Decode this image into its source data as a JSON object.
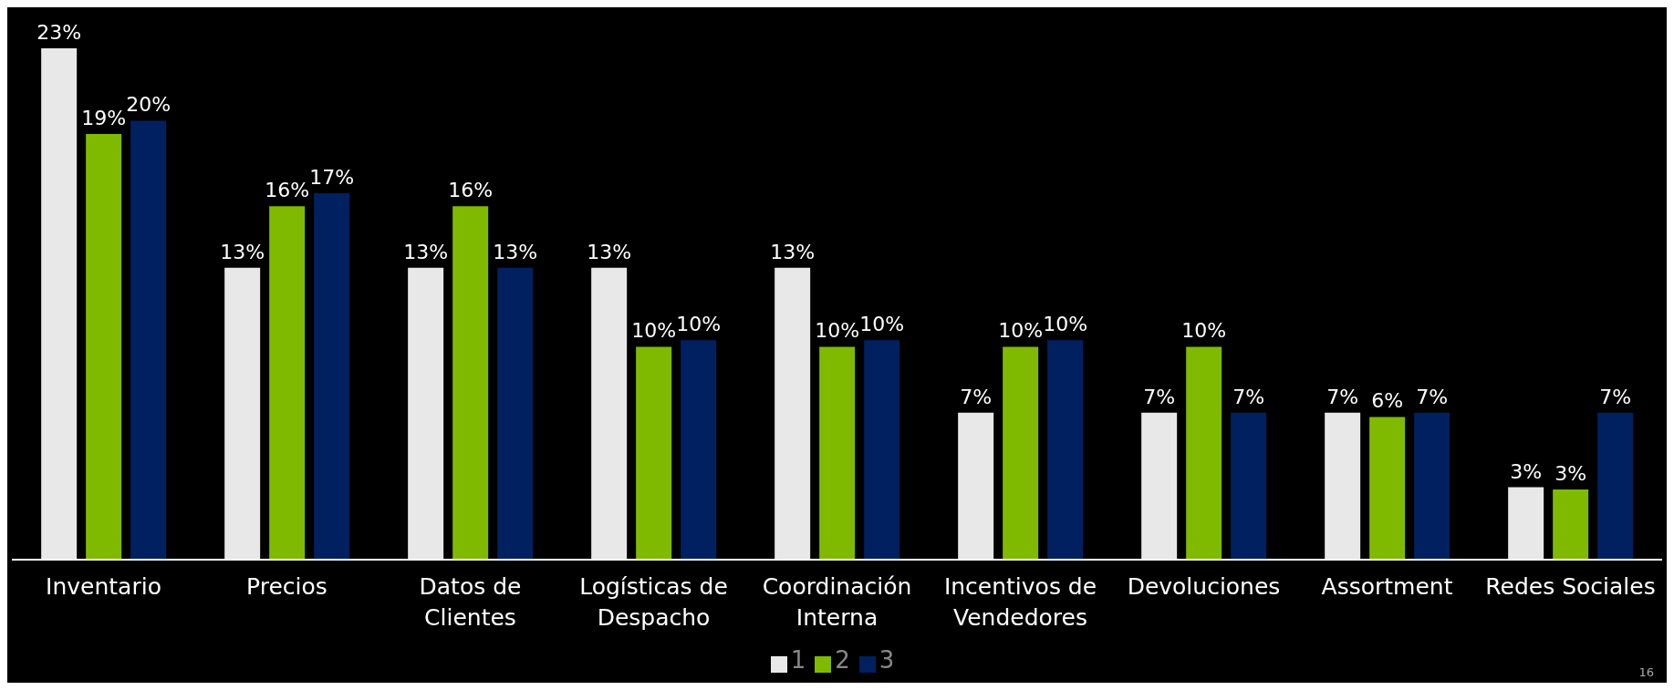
{
  "chart_data": {
    "type": "bar",
    "categories": [
      "Inventario",
      "Precios",
      "Datos de Clientes",
      "Logísticas de Despacho",
      "Coordinación Interna",
      "Incentivos de Vendedores",
      "Devoluciones",
      "Assortment",
      "Redes Sociales"
    ],
    "series": [
      {
        "name": "1",
        "color": "#e8e8e8",
        "values": [
          23.3,
          13.3,
          13.3,
          13.3,
          13.3,
          6.7,
          6.7,
          6.7,
          3.3
        ],
        "value_labels": [
          "23%",
          "13%",
          "13%",
          "13%",
          "13%",
          "7%",
          "7%",
          "7%",
          "3%"
        ]
      },
      {
        "name": "2",
        "color": "#7fba00",
        "values": [
          19.4,
          16.1,
          16.1,
          9.7,
          9.7,
          9.7,
          9.7,
          6.5,
          3.2
        ],
        "value_labels": [
          "19%",
          "16%",
          "16%",
          "10%",
          "10%",
          "10%",
          "10%",
          "6%",
          "3%"
        ]
      },
      {
        "name": "3",
        "color": "#002060",
        "values": [
          20,
          16.7,
          13.3,
          10,
          10,
          10,
          6.7,
          6.7,
          6.7
        ],
        "value_labels": [
          "20%",
          "17%",
          "13%",
          "10%",
          "10%",
          "10%",
          "7%",
          "7%",
          "7%"
        ]
      }
    ],
    "legend": "bottom",
    "annotations": [
      "16"
    ]
  }
}
